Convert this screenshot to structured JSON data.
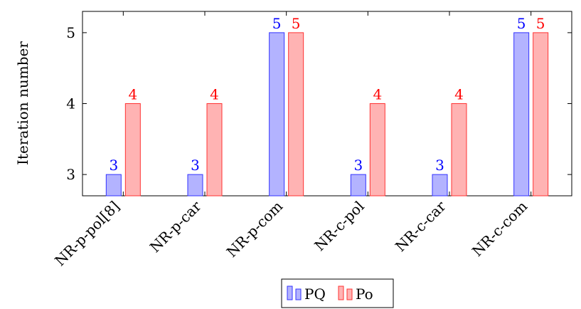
{
  "chart_data": {
    "type": "bar",
    "title": "",
    "xlabel": "",
    "ylabel": "Iteration number",
    "ylim": [
      2.7,
      5.3
    ],
    "yticks": [
      3,
      4,
      5
    ],
    "categories": [
      "NR-p-pol[8]",
      "NR-p-car",
      "NR-p-com",
      "NR-c-pol",
      "NR-c-car",
      "NR-c-com"
    ],
    "series": [
      {
        "name": "PQ",
        "values": [
          3,
          3,
          5,
          3,
          3,
          5
        ],
        "fill": "#b3b3ff",
        "stroke": "#3333ff",
        "label_color": "#0000ff"
      },
      {
        "name": "Po",
        "values": [
          4,
          4,
          5,
          4,
          4,
          5
        ],
        "fill": "#ffb3b3",
        "stroke": "#ff3333",
        "label_color": "#ff0000"
      }
    ],
    "legend": {
      "position": "bottom-center"
    },
    "grid": false
  }
}
